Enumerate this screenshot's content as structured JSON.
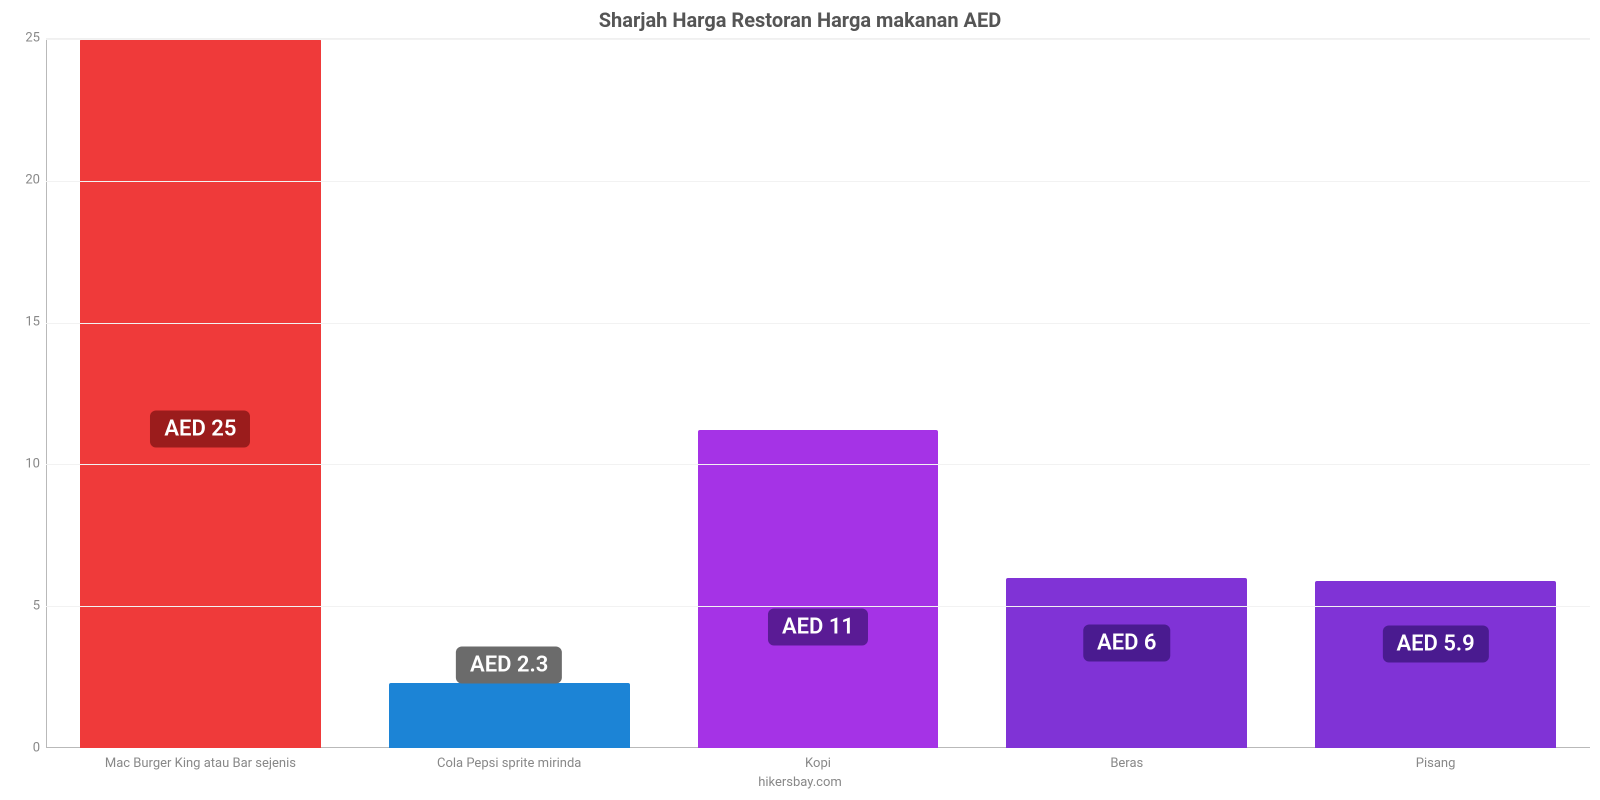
{
  "chart": {
    "type": "bar",
    "title": "Sharjah Harga Restoran Harga makanan AED",
    "title_fontsize": 20,
    "title_color": "#555555",
    "attribution": "hikersbay.com",
    "attribution_color": "#888888",
    "background_color": "#ffffff",
    "grid_color": "#f2f2f2",
    "axis_line_color": "#b9b9b9",
    "ylim_min": 0,
    "ylim_max": 25,
    "ytick_step": 5,
    "yticks": [
      0,
      5,
      10,
      15,
      20,
      25
    ],
    "tick_fontsize": 13,
    "tick_color": "#888888",
    "bar_width_pct": 78,
    "categories": [
      "Mac Burger King atau Bar sejenis",
      "Cola Pepsi sprite mirinda",
      "Kopi",
      "Beras",
      "Pisang"
    ],
    "values": [
      25,
      2.3,
      11.2,
      6,
      5.9
    ],
    "value_labels": [
      "AED 25",
      "AED 2.3",
      "AED 11",
      "AED 6",
      "AED 5.9"
    ],
    "value_label_fontsize": 22,
    "bar_colors": [
      "#ef3a3a",
      "#1c84d6",
      "#a533e6",
      "#8033d6",
      "#8033d6"
    ],
    "badge_colors": [
      "#9b1c1c",
      "#6b6b6b",
      "#5a1b95",
      "#4a1b90",
      "#4a1b90"
    ],
    "badge_top_offset_pct": [
      55,
      -28,
      62,
      38,
      38
    ]
  }
}
